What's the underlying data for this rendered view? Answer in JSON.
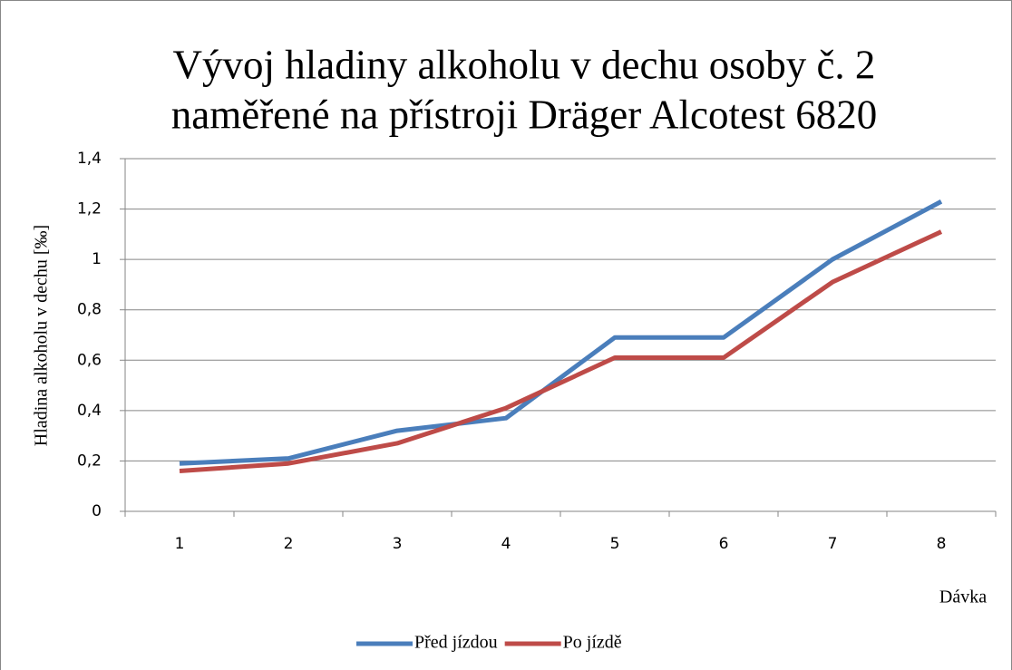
{
  "chart_data": {
    "type": "line",
    "title": [
      "Vývoj hladiny alkoholu v dechu osoby č. 2",
      "naměřené na přístroji Dräger Alcotest 6820"
    ],
    "x_label": "Dávka",
    "y_label": "Hladina alkoholu v dechu [‰]",
    "categories": [
      "1",
      "2",
      "3",
      "4",
      "5",
      "6",
      "7",
      "8"
    ],
    "series": [
      {
        "name": "Před jízdou",
        "color": "#4a7ebb",
        "values": [
          0.19,
          0.21,
          0.32,
          0.37,
          0.69,
          0.69,
          1.0,
          1.23
        ]
      },
      {
        "name": "Po jízdě",
        "color": "#be4b48",
        "values": [
          0.16,
          0.19,
          0.27,
          0.41,
          0.61,
          0.61,
          0.91,
          1.11
        ]
      }
    ],
    "ylim": [
      0,
      1.4
    ],
    "yticks": [
      0,
      {
        "value": 0.2,
        "label": "0,2"
      },
      {
        "value": 0.4,
        "label": "0,4"
      },
      {
        "value": 0.6,
        "label": "0,6"
      },
      {
        "value": 0.8,
        "label": "0,8"
      },
      1,
      {
        "value": 1.2,
        "label": "1,2"
      },
      {
        "value": 1.4,
        "label": "1,4"
      }
    ],
    "grid": true,
    "legend": "bottom"
  }
}
